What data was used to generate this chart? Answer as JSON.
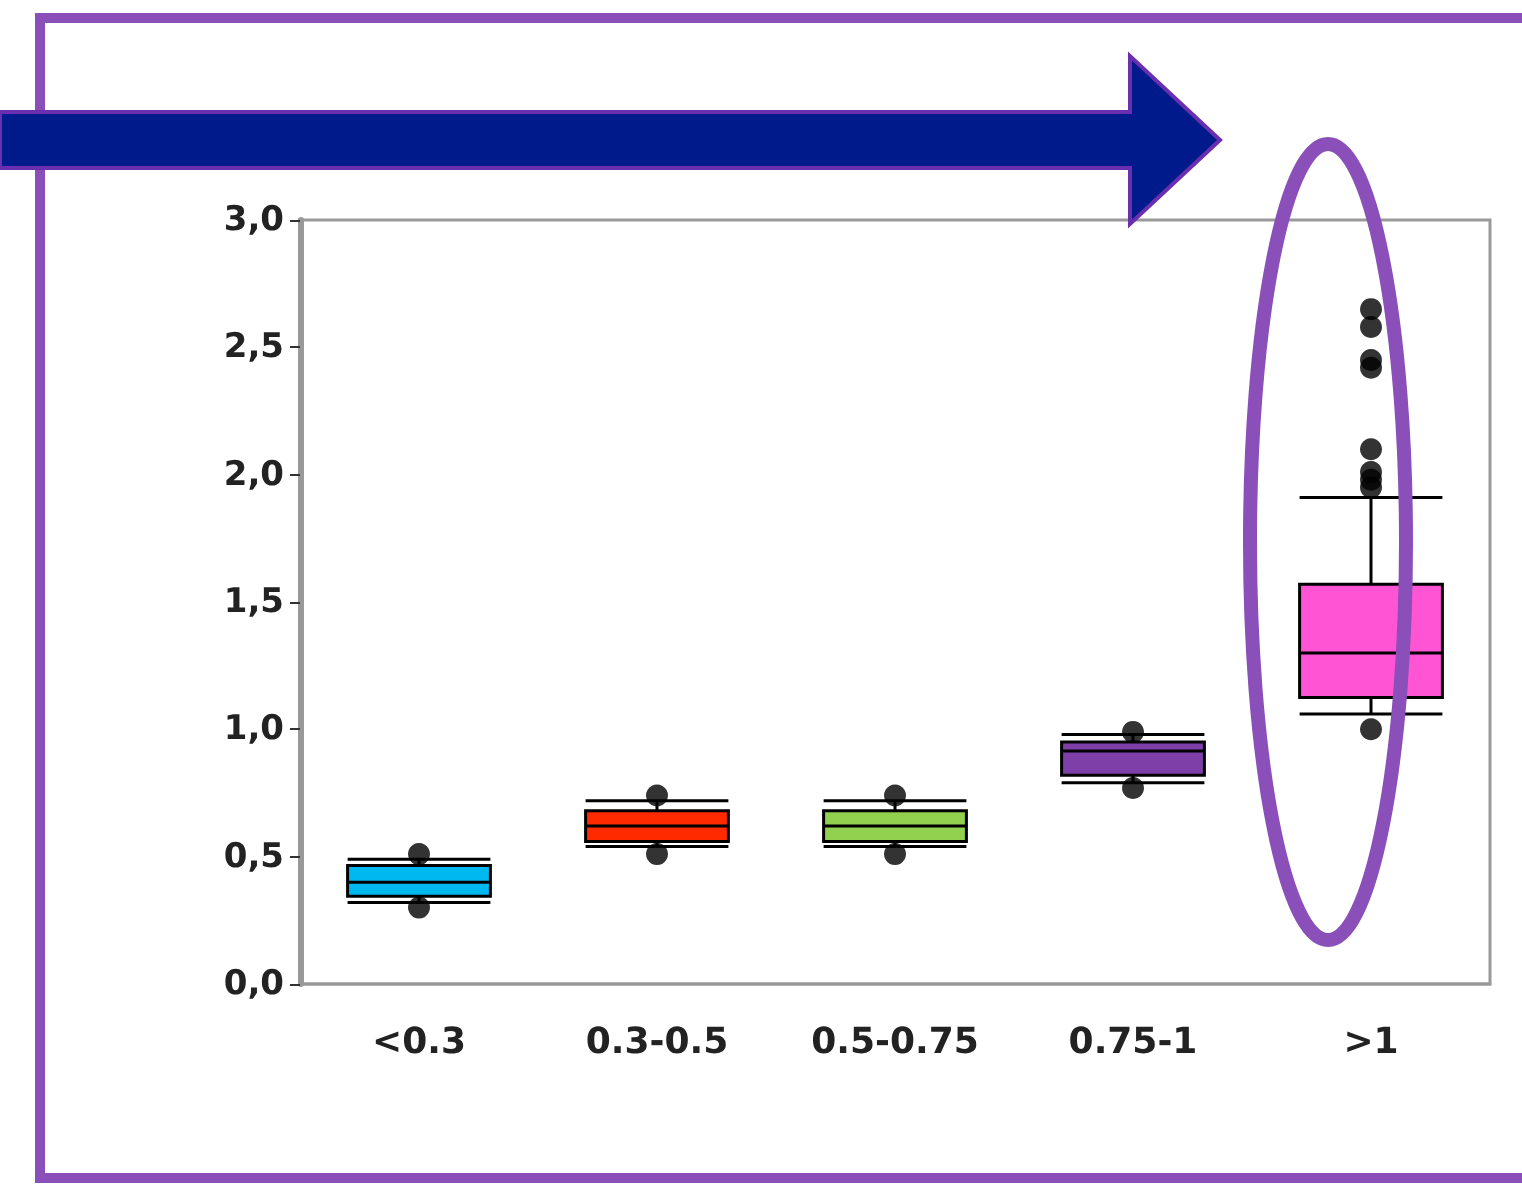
{
  "chart_data": {
    "type": "box",
    "categories": [
      "<0.3",
      "0.3-0.5",
      "0.5-0.75",
      "0.75-1",
      ">1"
    ],
    "boxes": [
      {
        "low": 0.32,
        "q1": 0.345,
        "median": 0.4,
        "q3": 0.465,
        "high": 0.49,
        "outliers": [
          0.51,
          0.3
        ]
      },
      {
        "low": 0.54,
        "q1": 0.56,
        "median": 0.62,
        "q3": 0.68,
        "high": 0.72,
        "outliers": [
          0.74,
          0.51
        ]
      },
      {
        "low": 0.54,
        "q1": 0.56,
        "median": 0.62,
        "q3": 0.68,
        "high": 0.72,
        "outliers": [
          0.74,
          0.51
        ]
      },
      {
        "low": 0.79,
        "q1": 0.82,
        "median": 0.915,
        "q3": 0.95,
        "high": 0.98,
        "outliers": [
          0.99,
          0.77
        ]
      },
      {
        "low": 1.06,
        "q1": 1.125,
        "median": 1.3,
        "q3": 1.57,
        "high": 1.91,
        "outliers": [
          2.65,
          2.58,
          2.45,
          2.42,
          2.1,
          2.01,
          1.98,
          1.95,
          1.0
        ]
      }
    ],
    "colors": [
      "#00b8f0",
      "#ff2a00",
      "#92d050",
      "#7f3fa8",
      "#ff55d4"
    ],
    "ylim": [
      0,
      3
    ],
    "yticks": [
      {
        "value": 0,
        "label": "0,0"
      },
      {
        "value": 0.5,
        "label": "0,5"
      },
      {
        "value": 1,
        "label": "1,0"
      },
      {
        "value": 1.5,
        "label": "1,5"
      },
      {
        "value": 2,
        "label": "2,0"
      },
      {
        "value": 2.5,
        "label": "2,5"
      },
      {
        "value": 3,
        "label": "3,0"
      }
    ],
    "grid": false
  }
}
